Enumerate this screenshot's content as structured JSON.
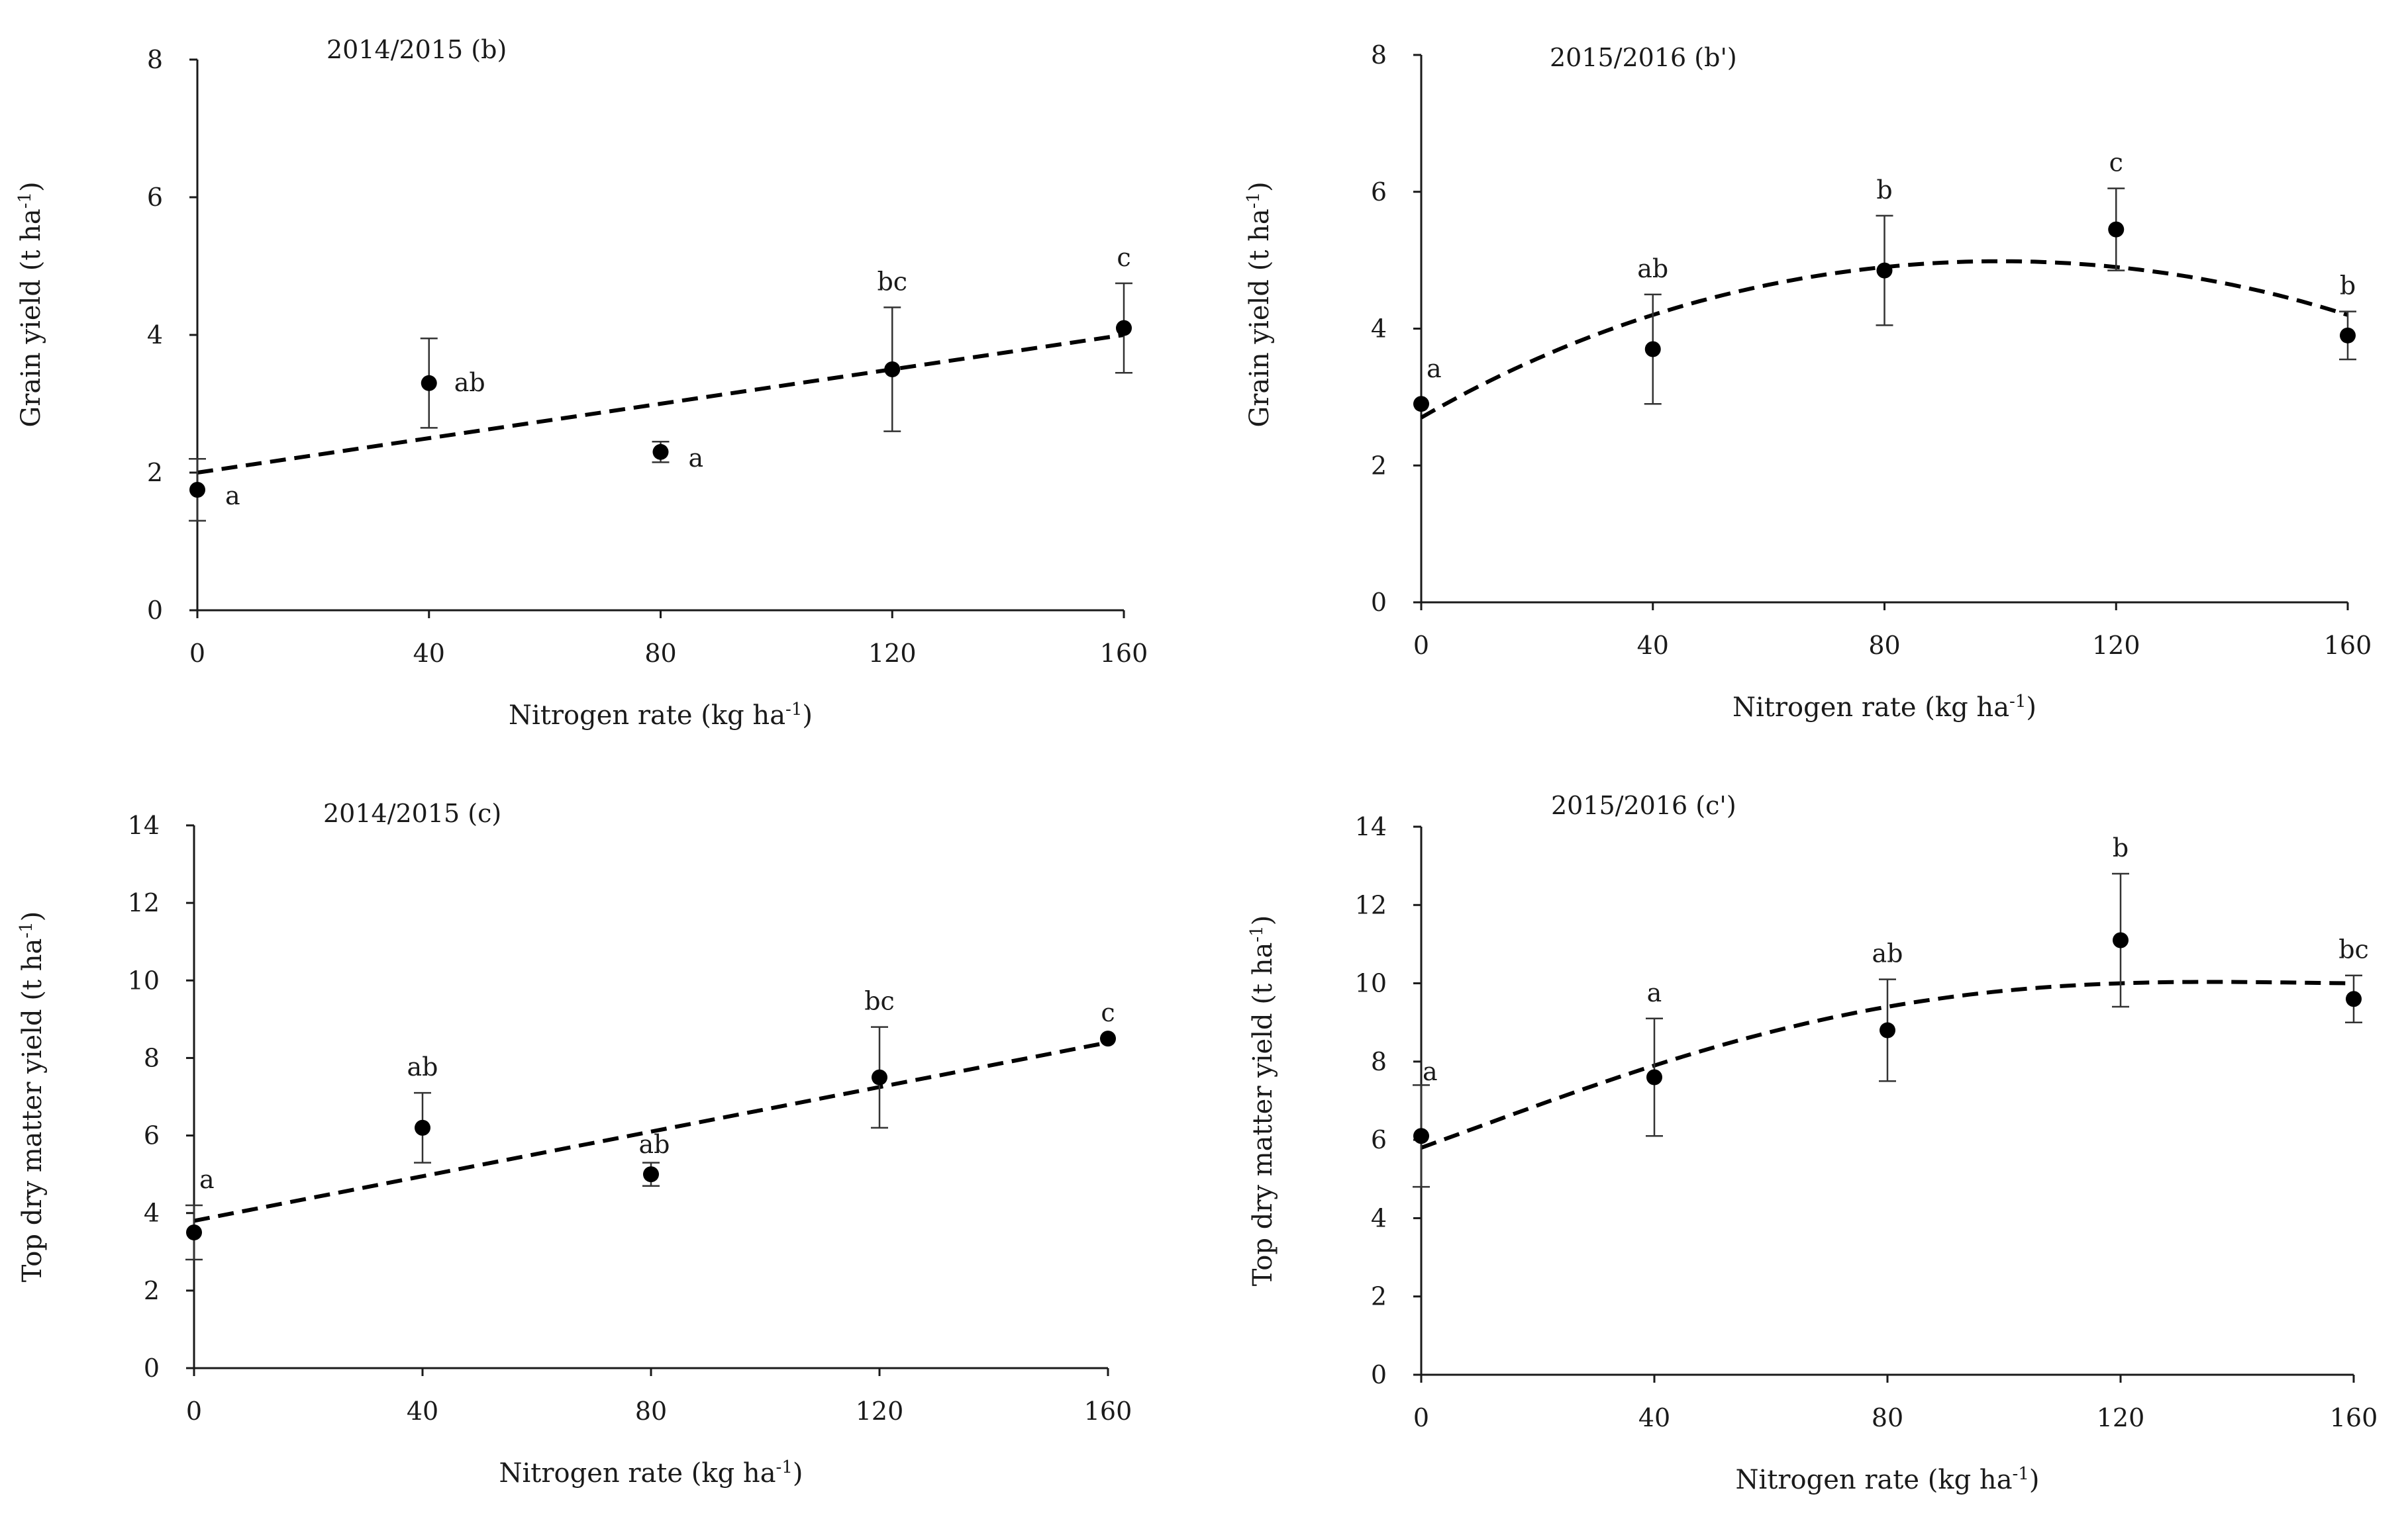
{
  "chart_data": [
    {
      "type": "scatter",
      "title": "2014/2015 (b)",
      "xlabel": "Nitrogen rate (kg ha-1)",
      "ylabel": "Grain yield (t ha-1)",
      "unit_superscript": "-1",
      "xlim": [
        0,
        160
      ],
      "ylim": [
        0,
        8
      ],
      "xticks": [
        0,
        40,
        80,
        120,
        160
      ],
      "yticks": [
        0,
        2,
        4,
        6,
        8
      ],
      "x": [
        0,
        40,
        80,
        120,
        160
      ],
      "y": [
        1.75,
        3.3,
        2.3,
        3.5,
        4.1
      ],
      "error": [
        0.45,
        0.65,
        0.15,
        0.9,
        0.65
      ],
      "letters": [
        "a",
        "ab",
        "a",
        "bc",
        "c"
      ],
      "trend": {
        "kind": "linear",
        "x": [
          0,
          160
        ],
        "y": [
          2.0,
          4.0
        ]
      }
    },
    {
      "type": "scatter",
      "title": "2015/2016 (b')",
      "xlabel": "Nitrogen rate (kg ha-1)",
      "ylabel": "Grain yield (t ha-1)",
      "unit_superscript": "-1",
      "xlim": [
        0,
        160
      ],
      "ylim": [
        0,
        8
      ],
      "xticks": [
        0,
        40,
        80,
        120,
        160
      ],
      "yticks": [
        0,
        2,
        4,
        6,
        8
      ],
      "x": [
        0,
        40,
        80,
        120,
        160
      ],
      "y": [
        2.9,
        3.7,
        4.85,
        5.45,
        3.9
      ],
      "error": [
        0.0,
        0.8,
        0.8,
        0.6,
        0.35
      ],
      "letters": [
        "a",
        "ab",
        "b",
        "c",
        "b"
      ],
      "trend": {
        "kind": "quadratic",
        "x": [
          0,
          40,
          80,
          120,
          160
        ],
        "y": [
          2.7,
          4.2,
          4.9,
          4.9,
          4.2
        ]
      }
    },
    {
      "type": "scatter",
      "title": "2014/2015 (c)",
      "xlabel": "Nitrogen rate (kg ha-1)",
      "ylabel": "Top dry matter yield (t ha-1)",
      "unit_superscript": "-1",
      "xlim": [
        0,
        160
      ],
      "ylim": [
        0,
        14
      ],
      "xticks": [
        0,
        40,
        80,
        120,
        160
      ],
      "yticks": [
        0,
        2,
        4,
        6,
        8,
        10,
        12,
        14
      ],
      "x": [
        0,
        40,
        80,
        120,
        160
      ],
      "y": [
        3.5,
        6.2,
        5.0,
        7.5,
        8.5
      ],
      "error": [
        0.7,
        0.9,
        0.3,
        1.3,
        0.0
      ],
      "letters": [
        "a",
        "ab",
        "ab",
        "bc",
        "c"
      ],
      "trend": {
        "kind": "linear",
        "x": [
          0,
          160
        ],
        "y": [
          3.8,
          8.4
        ]
      }
    },
    {
      "type": "scatter",
      "title": "2015/2016 (c')",
      "xlabel": "Nitrogen rate (kg ha-1)",
      "ylabel": "Top dry matter yield (t ha-1)",
      "unit_superscript": "-1",
      "xlim": [
        0,
        160
      ],
      "ylim": [
        0,
        14
      ],
      "xticks": [
        0,
        40,
        80,
        120,
        160
      ],
      "yticks": [
        0,
        2,
        4,
        6,
        8,
        10,
        12,
        14
      ],
      "x": [
        0,
        40,
        80,
        120,
        160
      ],
      "y": [
        6.1,
        7.6,
        8.8,
        11.1,
        9.6
      ],
      "error": [
        1.3,
        1.5,
        1.3,
        1.7,
        0.6
      ],
      "letters": [
        "a",
        "a",
        "ab",
        "b",
        "bc"
      ],
      "trend": {
        "kind": "quadratic",
        "x": [
          0,
          40,
          80,
          120,
          160
        ],
        "y": [
          5.8,
          7.9,
          9.4,
          10.0,
          10.0
        ]
      }
    }
  ]
}
